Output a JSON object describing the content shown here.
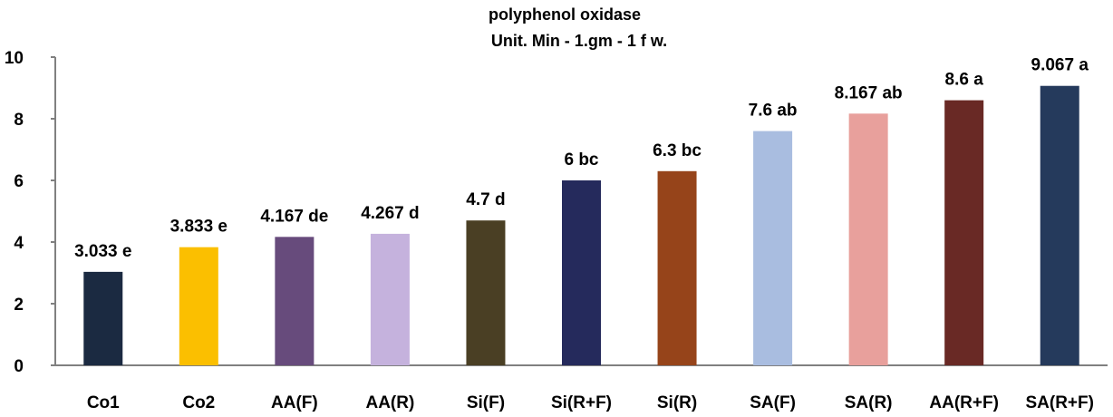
{
  "chart_data": {
    "type": "bar",
    "title": "polyphenol oxidase",
    "subtitle": "Unit. Min - 1.gm - 1 f w.",
    "categories": [
      "Co1",
      "Co2",
      "AA(F)",
      "AA(R)",
      "Si(F)",
      "Si(R+F)",
      "Si(R)",
      "SA(F)",
      "SA(R)",
      "AA(R+F)",
      "SA(R+F)"
    ],
    "values": [
      3.033,
      3.833,
      4.167,
      4.267,
      4.7,
      6,
      6.3,
      7.6,
      8.167,
      8.6,
      9.067
    ],
    "data_labels": [
      "3.033 e",
      "3.833 e",
      "4.167 de",
      "4.267 d",
      "4.7 d",
      "6 bc",
      "6.3 bc",
      "7.6 ab",
      "8.167 ab",
      "8.6 a",
      "9.067 a"
    ],
    "colors": [
      "#1b2a41",
      "#fbbf00",
      "#674b7c",
      "#c5b2dd",
      "#4a3f24",
      "#252a5c",
      "#96441a",
      "#a9bde0",
      "#e8a09c",
      "#692925",
      "#253a5c"
    ],
    "y_ticks": [
      "0",
      "2",
      "4",
      "6",
      "8",
      "10"
    ],
    "xlabel": "",
    "ylabel": "",
    "ylim": [
      0,
      10
    ],
    "grid": false,
    "legend": "none"
  }
}
